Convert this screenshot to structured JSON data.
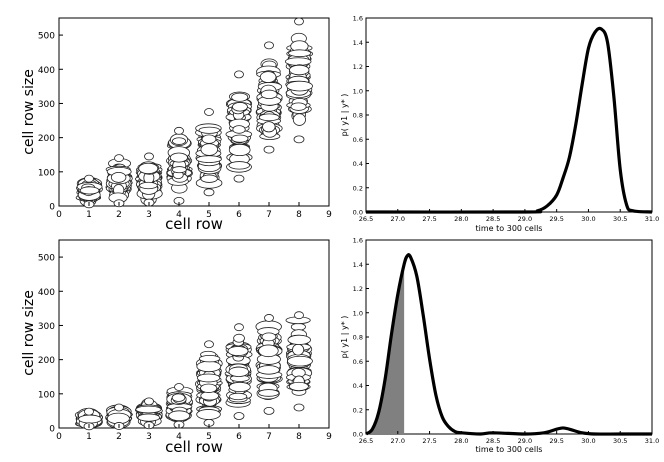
{
  "chart_data": [
    {
      "id": "top-left",
      "type": "scatter",
      "title": "",
      "xlabel": "cell row",
      "ylabel": "cell row size",
      "xlim": [
        0,
        9
      ],
      "ylim": [
        0,
        550
      ],
      "xticks": [
        0,
        1,
        2,
        3,
        4,
        5,
        6,
        7,
        8,
        9
      ],
      "yticks": [
        0,
        100,
        200,
        300,
        400,
        500
      ],
      "grid": false,
      "series": [
        {
          "x": 1,
          "min": 5,
          "max": 80
        },
        {
          "x": 2,
          "min": 8,
          "max": 140
        },
        {
          "x": 3,
          "min": 10,
          "max": 145
        },
        {
          "x": 4,
          "min": 15,
          "max": 220
        },
        {
          "x": 5,
          "min": 40,
          "max": 275
        },
        {
          "x": 6,
          "min": 80,
          "max": 385
        },
        {
          "x": 7,
          "min": 165,
          "max": 470
        },
        {
          "x": 8,
          "min": 195,
          "max": 540
        }
      ]
    },
    {
      "id": "top-right",
      "type": "line",
      "title": "",
      "xlabel": "time to 300 cells",
      "ylabel": "p( y1 | y* )",
      "xlim": [
        26.5,
        31.0
      ],
      "ylim": [
        0,
        1.6
      ],
      "xticks": [
        "26.5",
        "27.0",
        "27.5",
        "28.0",
        "28.5",
        "29.0",
        "29.5",
        "30.0",
        "30.5",
        "31.0"
      ],
      "yticks": [
        "0.0",
        "0.2",
        "0.4",
        "0.6",
        "0.8",
        "1.0",
        "1.2",
        "1.4",
        "1.6"
      ],
      "grid": false,
      "x": [
        26.5,
        29.0,
        29.2,
        29.35,
        29.5,
        29.6,
        29.7,
        29.8,
        29.9,
        30.0,
        30.1,
        30.2,
        30.3,
        30.4,
        30.5,
        30.6,
        30.7,
        31.0
      ],
      "y": [
        0,
        0,
        0.01,
        0.05,
        0.14,
        0.28,
        0.45,
        0.72,
        1.05,
        1.35,
        1.48,
        1.51,
        1.4,
        0.95,
        0.35,
        0.06,
        0.01,
        0
      ],
      "shade": null
    },
    {
      "id": "bottom-left",
      "type": "scatter",
      "title": "",
      "xlabel": "cell row",
      "ylabel": "cell row size",
      "xlim": [
        0,
        9
      ],
      "ylim": [
        0,
        550
      ],
      "xticks": [
        0,
        1,
        2,
        3,
        4,
        5,
        6,
        7,
        8,
        9
      ],
      "yticks": [
        0,
        100,
        200,
        300,
        400,
        500
      ],
      "grid": false,
      "series": [
        {
          "x": 1,
          "min": 5,
          "max": 48
        },
        {
          "x": 2,
          "min": 6,
          "max": 60
        },
        {
          "x": 3,
          "min": 8,
          "max": 78
        },
        {
          "x": 4,
          "min": 10,
          "max": 120
        },
        {
          "x": 5,
          "min": 15,
          "max": 245
        },
        {
          "x": 6,
          "min": 35,
          "max": 295
        },
        {
          "x": 7,
          "min": 50,
          "max": 322
        },
        {
          "x": 8,
          "min": 60,
          "max": 330
        }
      ]
    },
    {
      "id": "bottom-right",
      "type": "line",
      "title": "",
      "xlabel": "time to 300 cells",
      "ylabel": "p( y1 | y* )",
      "xlim": [
        26.5,
        31.0
      ],
      "ylim": [
        0,
        1.6
      ],
      "xticks": [
        "26.5",
        "27.0",
        "27.5",
        "28.0",
        "28.5",
        "29.0",
        "29.5",
        "30.0",
        "30.5",
        "31.0"
      ],
      "yticks": [
        "0.0",
        "0.2",
        "0.4",
        "0.6",
        "0.8",
        "1.0",
        "1.2",
        "1.4",
        "1.6"
      ],
      "grid": false,
      "x": [
        26.5,
        26.6,
        26.7,
        26.8,
        26.9,
        27.0,
        27.1,
        27.15,
        27.2,
        27.3,
        27.4,
        27.5,
        27.6,
        27.7,
        27.8,
        27.9,
        28.0,
        28.3,
        28.5,
        29.0,
        29.3,
        29.5,
        29.6,
        29.7,
        29.9,
        30.1,
        30.5,
        31.0
      ],
      "y": [
        0,
        0.04,
        0.18,
        0.45,
        0.82,
        1.15,
        1.4,
        1.47,
        1.46,
        1.3,
        0.98,
        0.62,
        0.32,
        0.14,
        0.06,
        0.02,
        0.01,
        0.0,
        0.01,
        0.0,
        0.01,
        0.04,
        0.05,
        0.04,
        0.01,
        0.0,
        0.0,
        0
      ],
      "shade": [
        26.5,
        27.1
      ]
    }
  ]
}
